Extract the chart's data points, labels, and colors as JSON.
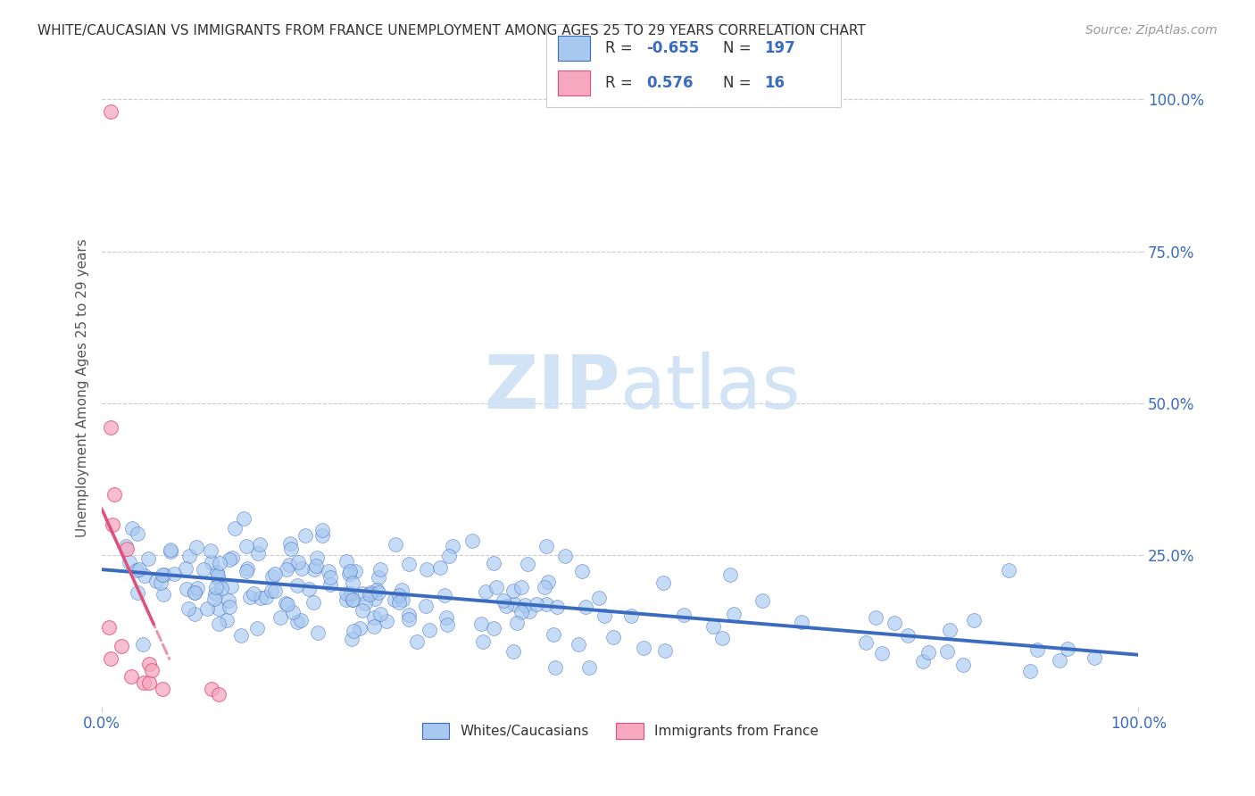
{
  "title": "WHITE/CAUCASIAN VS IMMIGRANTS FROM FRANCE UNEMPLOYMENT AMONG AGES 25 TO 29 YEARS CORRELATION CHART",
  "source": "Source: ZipAtlas.com",
  "xlabel": "",
  "ylabel": "Unemployment Among Ages 25 to 29 years",
  "blue_R": -0.655,
  "blue_N": 197,
  "pink_R": 0.576,
  "pink_N": 16,
  "blue_label": "Whites/Caucasians",
  "pink_label": "Immigrants from France",
  "blue_color": "#a8c8f0",
  "blue_line_color": "#3a6bbf",
  "pink_color": "#f5a8c0",
  "pink_line_color": "#e0507a",
  "background_color": "#ffffff",
  "grid_color": "#cccccc",
  "title_color": "#333333",
  "axis_label_color": "#555555",
  "tick_label_color": "#3a6bbf",
  "watermark_zip": "ZIP",
  "watermark_atlas": "atlas",
  "xlim": [
    0,
    1
  ],
  "ylim": [
    0,
    1
  ],
  "xticklabels": [
    "0.0%",
    "100.0%"
  ],
  "yticklabels": [
    "25.0%",
    "50.0%",
    "75.0%",
    "100.0%"
  ],
  "legend_R_color": "#3a6bbf",
  "legend_N_color": "#3a6bbf"
}
